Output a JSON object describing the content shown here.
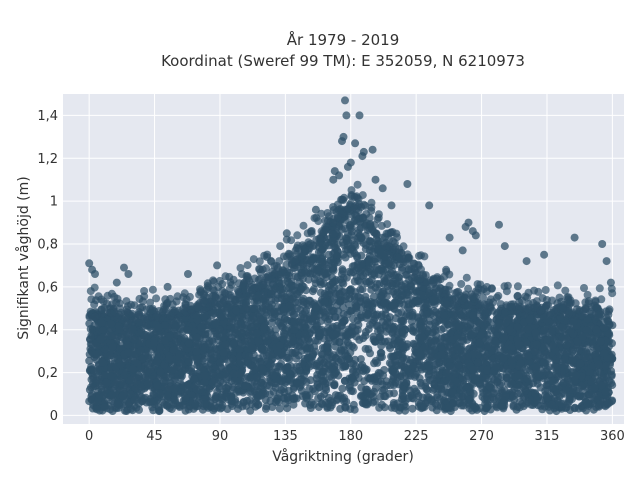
{
  "chart_data": {
    "type": "scatter",
    "title_line1": "År 1979 - 2019",
    "title_line2": "Koordinat (Sweref 99 TM): E 352059, N 6210973",
    "xlabel": "Vågriktning (grader)",
    "ylabel": "Signifikant våghöjd (m)",
    "xlim": [
      -18,
      368
    ],
    "ylim": [
      -0.04,
      1.5
    ],
    "x_ticks": [
      0,
      45,
      90,
      135,
      180,
      225,
      270,
      315,
      360
    ],
    "x_tick_labels": [
      "0",
      "45",
      "90",
      "135",
      "180",
      "225",
      "270",
      "315",
      "360"
    ],
    "y_ticks": [
      0,
      0.2,
      0.4,
      0.6,
      0.8,
      1.0,
      1.2,
      1.4
    ],
    "y_tick_labels": [
      "0",
      "0,2",
      "0,4",
      "0,6",
      "0,8",
      "1",
      "1,2",
      "1,4"
    ],
    "grid": true,
    "marker_color": "#2e5068",
    "plot_background": "#e5e8f0",
    "envelope": {
      "x": [
        0,
        10,
        20,
        30,
        45,
        60,
        75,
        90,
        105,
        120,
        135,
        150,
        165,
        175,
        180,
        185,
        195,
        210,
        225,
        240,
        255,
        270,
        285,
        300,
        315,
        330,
        345,
        360
      ],
      "lower": [
        0.02,
        0.02,
        0.02,
        0.02,
        0.02,
        0.02,
        0.02,
        0.02,
        0.02,
        0.02,
        0.02,
        0.02,
        0.02,
        0.02,
        0.02,
        0.02,
        0.02,
        0.02,
        0.02,
        0.02,
        0.02,
        0.02,
        0.02,
        0.02,
        0.02,
        0.02,
        0.02,
        0.05
      ],
      "dense_upper": [
        0.45,
        0.47,
        0.46,
        0.45,
        0.45,
        0.47,
        0.49,
        0.52,
        0.56,
        0.61,
        0.68,
        0.76,
        0.86,
        0.94,
        0.97,
        0.95,
        0.86,
        0.75,
        0.65,
        0.58,
        0.53,
        0.51,
        0.5,
        0.49,
        0.48,
        0.47,
        0.46,
        0.46
      ]
    },
    "outliers": [
      {
        "x": 0,
        "y": 0.71
      },
      {
        "x": 2,
        "y": 0.68
      },
      {
        "x": 4,
        "y": 0.66
      },
      {
        "x": 19,
        "y": 0.62
      },
      {
        "x": 24,
        "y": 0.69
      },
      {
        "x": 27,
        "y": 0.66
      },
      {
        "x": 54,
        "y": 0.6
      },
      {
        "x": 68,
        "y": 0.66
      },
      {
        "x": 88,
        "y": 0.7
      },
      {
        "x": 136,
        "y": 0.85
      },
      {
        "x": 156,
        "y": 0.96
      },
      {
        "x": 168,
        "y": 1.1
      },
      {
        "x": 169,
        "y": 1.14
      },
      {
        "x": 172,
        "y": 1.12
      },
      {
        "x": 174,
        "y": 1.28
      },
      {
        "x": 175,
        "y": 1.3
      },
      {
        "x": 176,
        "y": 1.47
      },
      {
        "x": 177,
        "y": 1.4
      },
      {
        "x": 178,
        "y": 1.16
      },
      {
        "x": 180,
        "y": 1.18
      },
      {
        "x": 183,
        "y": 1.27
      },
      {
        "x": 186,
        "y": 1.4
      },
      {
        "x": 188,
        "y": 1.21
      },
      {
        "x": 189,
        "y": 1.23
      },
      {
        "x": 195,
        "y": 1.24
      },
      {
        "x": 197,
        "y": 1.1
      },
      {
        "x": 202,
        "y": 1.06
      },
      {
        "x": 208,
        "y": 0.98
      },
      {
        "x": 219,
        "y": 1.08
      },
      {
        "x": 234,
        "y": 0.98
      },
      {
        "x": 248,
        "y": 0.83
      },
      {
        "x": 257,
        "y": 0.77
      },
      {
        "x": 259,
        "y": 0.88
      },
      {
        "x": 261,
        "y": 0.9
      },
      {
        "x": 264,
        "y": 0.86
      },
      {
        "x": 266,
        "y": 0.84
      },
      {
        "x": 282,
        "y": 0.89
      },
      {
        "x": 286,
        "y": 0.79
      },
      {
        "x": 301,
        "y": 0.72
      },
      {
        "x": 313,
        "y": 0.75
      },
      {
        "x": 334,
        "y": 0.83
      },
      {
        "x": 353,
        "y": 0.8
      },
      {
        "x": 356,
        "y": 0.72
      },
      {
        "x": 359,
        "y": 0.62
      }
    ]
  }
}
